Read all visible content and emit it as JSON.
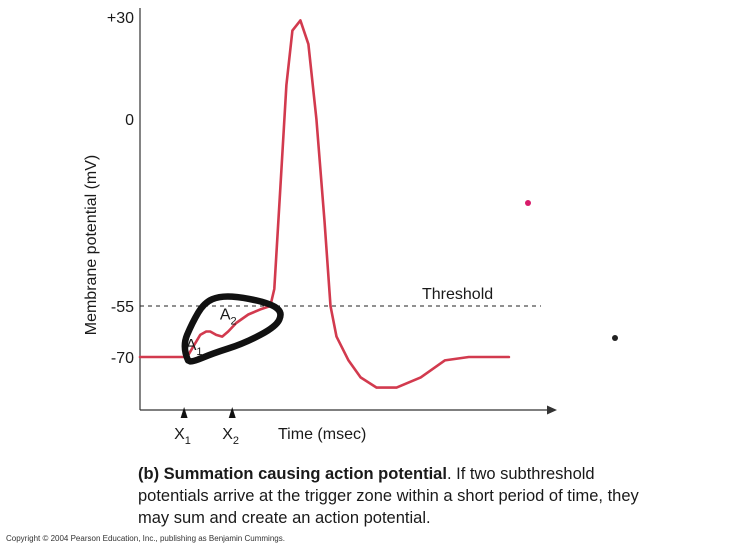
{
  "chart_data": {
    "type": "line",
    "ylabel": "Membrane potential (mV)",
    "xlabel": "Time (msec)",
    "yticks": [
      {
        "value": 30,
        "label": "+30"
      },
      {
        "value": 0,
        "label": "0"
      },
      {
        "value": -55,
        "label": "-55"
      },
      {
        "value": -70,
        "label": "-70"
      }
    ],
    "ylim": [
      -92,
      35
    ],
    "xlim": [
      0,
      100
    ],
    "threshold": {
      "value": -55,
      "label": "Threshold"
    },
    "series": [
      {
        "color": "#d23a4e",
        "points": [
          [
            0,
            -70
          ],
          [
            11,
            -70
          ],
          [
            12,
            -69.5
          ],
          [
            13.5,
            -66.5
          ],
          [
            15,
            -63.5
          ],
          [
            16.5,
            -62.5
          ],
          [
            17.5,
            -62.5
          ],
          [
            19,
            -63.5
          ],
          [
            20.5,
            -64
          ],
          [
            22,
            -62.5
          ],
          [
            24,
            -60
          ],
          [
            27,
            -57.5
          ],
          [
            30,
            -56
          ],
          [
            32.5,
            -55
          ],
          [
            33.5,
            -50
          ],
          [
            35,
            -20
          ],
          [
            36.5,
            10
          ],
          [
            38,
            26
          ],
          [
            40,
            29
          ],
          [
            42,
            22
          ],
          [
            44,
            0
          ],
          [
            46,
            -30
          ],
          [
            47.5,
            -55
          ],
          [
            49,
            -64
          ],
          [
            52,
            -71
          ],
          [
            55,
            -76
          ],
          [
            59,
            -79
          ],
          [
            64,
            -79
          ],
          [
            70,
            -76
          ],
          [
            76,
            -71
          ],
          [
            82,
            -70
          ],
          [
            88,
            -70
          ],
          [
            92,
            -70
          ]
        ]
      }
    ],
    "stimuli": [
      {
        "name": "X",
        "sub": "1",
        "x": 11
      },
      {
        "name": "X",
        "sub": "2",
        "x": 23
      }
    ],
    "annotations": [
      {
        "name": "A",
        "sub": "1",
        "x": 13.5,
        "y": -68
      },
      {
        "name": "A",
        "sub": "2",
        "x": 22,
        "y": -59
      },
      {
        "kind": "hand-drawn-loop",
        "color": "#111111",
        "points": [
          [
            12,
            -71
          ],
          [
            10.5,
            -67
          ],
          [
            13,
            -60
          ],
          [
            16,
            -54
          ],
          [
            20,
            -52
          ],
          [
            26,
            -52.5
          ],
          [
            33,
            -54.5
          ],
          [
            35.5,
            -57
          ],
          [
            34,
            -61
          ],
          [
            26,
            -66
          ],
          [
            18,
            -69
          ],
          [
            13,
            -71.5
          ],
          [
            12,
            -71
          ]
        ]
      }
    ]
  },
  "caption": {
    "bold": "(b) Summation causing action potential",
    "text": ". If two subthreshold potentials arrive at the trigger zone within a short period of time, they may sum and create an action potential."
  },
  "copyright": "Copyright © 2004 Pearson Education, Inc., publishing as Benjamin Cummings.",
  "colors": {
    "trace": "#d23a4e",
    "marker": "#d81b6a",
    "ink": "#111111"
  }
}
